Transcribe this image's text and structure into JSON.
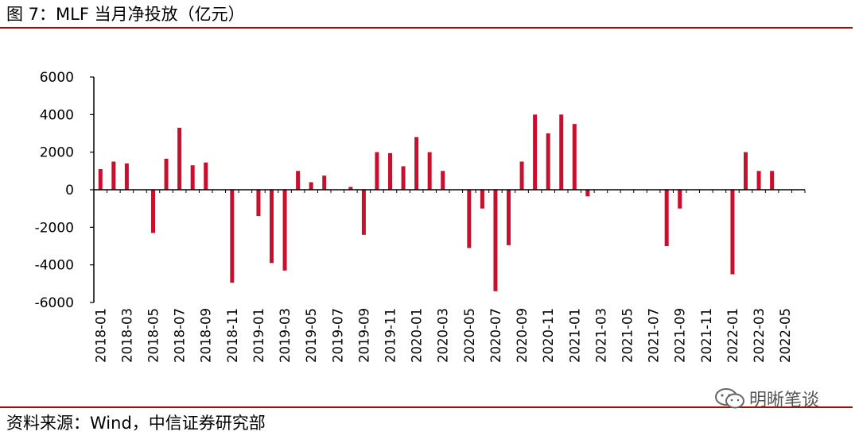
{
  "figure": {
    "title": "图 7：MLF 当月净投放（亿元）",
    "source": "资料来源：Wind，中信证券研究部",
    "watermark": "明晰笔谈",
    "watermark_icon": "wechat-icon"
  },
  "colors": {
    "bar": "#c8102e",
    "rule": "#c00000",
    "axis": "#000000"
  },
  "chart_data": {
    "type": "bar",
    "title": "MLF 当月净投放（亿元）",
    "xlabel": "",
    "ylabel": "",
    "ylim": [
      -6000,
      6000
    ],
    "yticks": [
      6000,
      4000,
      2000,
      0,
      -2000,
      -4000,
      -6000
    ],
    "grid": false,
    "legend": "none",
    "x_tick_labels": [
      "2018-01",
      "2018-03",
      "2018-05",
      "2018-07",
      "2018-09",
      "2018-11",
      "2019-01",
      "2019-03",
      "2019-05",
      "2019-07",
      "2019-09",
      "2019-11",
      "2020-01",
      "2020-03",
      "2020-05",
      "2020-07",
      "2020-09",
      "2020-11",
      "2021-01",
      "2021-03",
      "2021-05",
      "2021-07",
      "2021-09",
      "2021-11",
      "2022-01",
      "2022-03",
      "2022-05"
    ],
    "categories": [
      "2018-01",
      "2018-02",
      "2018-03",
      "2018-04",
      "2018-05",
      "2018-06",
      "2018-07",
      "2018-08",
      "2018-09",
      "2018-10",
      "2018-11",
      "2018-12",
      "2019-01",
      "2019-02",
      "2019-03",
      "2019-04",
      "2019-05",
      "2019-06",
      "2019-07",
      "2019-08",
      "2019-09",
      "2019-10",
      "2019-11",
      "2019-12",
      "2020-01",
      "2020-02",
      "2020-03",
      "2020-04",
      "2020-05",
      "2020-06",
      "2020-07",
      "2020-08",
      "2020-09",
      "2020-10",
      "2020-11",
      "2020-12",
      "2021-01",
      "2021-02",
      "2021-03",
      "2021-04",
      "2021-05",
      "2021-06",
      "2021-07",
      "2021-08",
      "2021-09",
      "2021-10",
      "2021-11",
      "2021-12",
      "2022-01",
      "2022-02",
      "2022-03",
      "2022-04",
      "2022-05",
      "2022-06"
    ],
    "values": [
      1100,
      1500,
      1400,
      0,
      -2300,
      1650,
      3300,
      1300,
      1450,
      0,
      -4950,
      0,
      -1400,
      -3900,
      -4300,
      1000,
      400,
      750,
      0,
      150,
      -2400,
      2000,
      1950,
      1250,
      2800,
      2000,
      1000,
      0,
      -3100,
      -1000,
      -5400,
      -2950,
      1500,
      4000,
      3000,
      4000,
      3500,
      -350,
      0,
      0,
      0,
      0,
      0,
      -3000,
      -1000,
      0,
      0,
      0,
      -4500,
      2000,
      1000,
      1000,
      0,
      0
    ]
  }
}
